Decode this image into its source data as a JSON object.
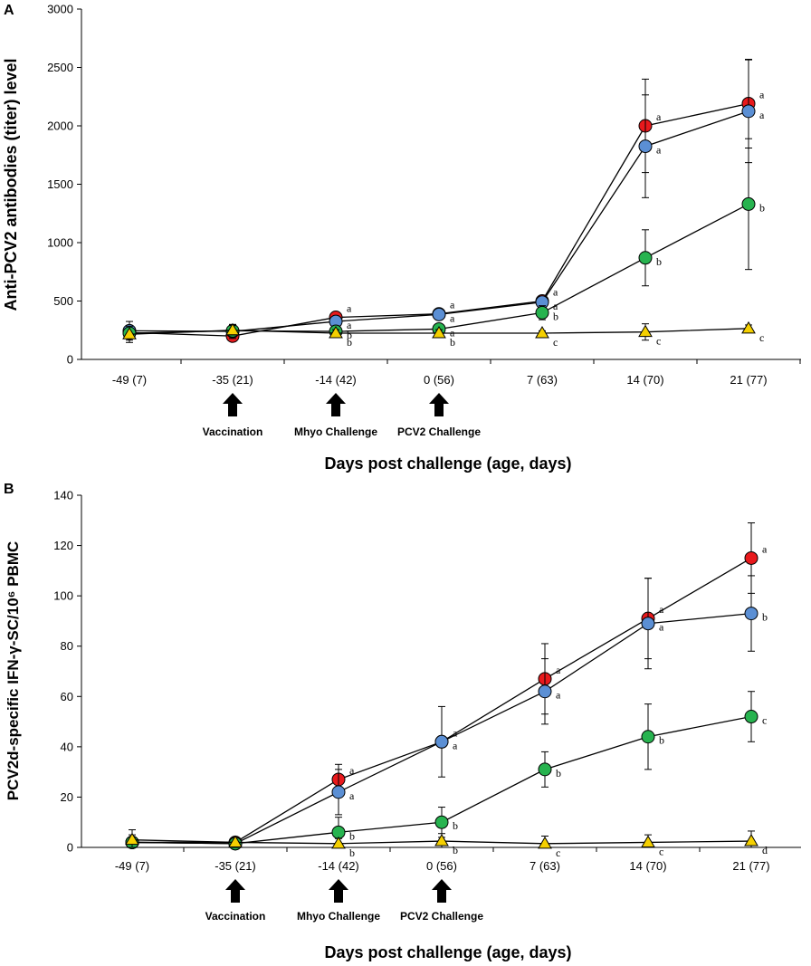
{
  "chart_data": [
    {
      "panel": "A",
      "type": "line",
      "xlabel": "Days post challenge (age, days)",
      "ylabel": "Anti-PCV2 antibodies (titer) level",
      "ylim": [
        0,
        3000
      ],
      "yticks": [
        0,
        500,
        1000,
        1500,
        2000,
        2500,
        3000
      ],
      "categories": [
        "-49 (7)",
        "-35 (21)",
        "-14 (42)",
        "0 (56)",
        "7 (63)",
        "14 (70)",
        "21 (77)"
      ],
      "events": [
        {
          "label": "Vaccination",
          "at": 1
        },
        {
          "label": "Mhyo Challenge",
          "at": 2
        },
        {
          "label": "PCV2 Challenge",
          "at": 3
        }
      ],
      "series": [
        {
          "name": "red",
          "color": "#e8191c",
          "marker": "circle",
          "values": [
            230,
            200,
            360,
            390,
            500,
            2000,
            2190
          ],
          "errors": [
            0,
            0,
            0,
            0,
            0,
            400,
            380
          ],
          "letters": [
            "",
            "",
            "a",
            "a",
            "a",
            "a",
            "a"
          ]
        },
        {
          "name": "blue",
          "color": "#5b8fd4",
          "marker": "circle",
          "values": [
            245,
            240,
            325,
            385,
            490,
            1825,
            2125
          ],
          "errors": [
            80,
            60,
            40,
            30,
            40,
            440,
            440
          ],
          "letters": [
            "",
            "",
            "a",
            "a",
            "a",
            "a",
            "a"
          ]
        },
        {
          "name": "green",
          "color": "#27b34f",
          "marker": "circle",
          "values": [
            225,
            245,
            240,
            260,
            400,
            870,
            1330
          ],
          "errors": [
            0,
            50,
            30,
            40,
            60,
            240,
            560
          ],
          "letters": [
            "",
            "",
            "b",
            "a",
            "b",
            "b",
            "b"
          ]
        },
        {
          "name": "yellow",
          "color": "#f5d000",
          "marker": "triangle",
          "values": [
            215,
            250,
            225,
            225,
            225,
            235,
            265
          ],
          "errors": [
            70,
            40,
            30,
            30,
            20,
            70,
            30
          ],
          "letters": [
            "",
            "",
            "b",
            "b",
            "c",
            "c",
            "c"
          ]
        }
      ]
    },
    {
      "panel": "B",
      "type": "line",
      "xlabel": "Days post challenge (age, days)",
      "ylabel": "PCV2d-specific IFN-γ-SC/10⁶ PBMC",
      "ylim": [
        0,
        140
      ],
      "yticks": [
        0,
        20,
        40,
        60,
        80,
        100,
        120,
        140
      ],
      "categories": [
        "-49 (7)",
        "-35 (21)",
        "-14 (42)",
        "0 (56)",
        "7 (63)",
        "14 (70)",
        "21 (77)"
      ],
      "events": [
        {
          "label": "Vaccination",
          "at": 1
        },
        {
          "label": "Mhyo Challenge",
          "at": 2
        },
        {
          "label": "PCV2 Challenge",
          "at": 3
        }
      ],
      "series": [
        {
          "name": "red",
          "color": "#e8191c",
          "marker": "circle",
          "values": [
            2,
            2,
            27,
            42,
            67,
            91,
            115
          ],
          "errors": [
            0,
            0,
            6,
            0,
            14,
            16,
            14
          ],
          "letters": [
            "",
            "",
            "a",
            "a",
            "a",
            "a",
            "a"
          ]
        },
        {
          "name": "blue",
          "color": "#5b8fd4",
          "marker": "circle",
          "values": [
            2,
            1.5,
            22,
            42,
            62,
            89,
            93
          ],
          "errors": [
            0,
            0,
            9,
            14,
            13,
            18,
            15
          ],
          "letters": [
            "",
            "",
            "a",
            "a",
            "a",
            "a",
            "b"
          ]
        },
        {
          "name": "green",
          "color": "#27b34f",
          "marker": "circle",
          "values": [
            2,
            1.5,
            6,
            10,
            31,
            44,
            52
          ],
          "errors": [
            3,
            2,
            6,
            6,
            7,
            13,
            10
          ],
          "letters": [
            "",
            "",
            "b",
            "b",
            "b",
            "b",
            "c"
          ]
        },
        {
          "name": "yellow",
          "color": "#f5d000",
          "marker": "triangle",
          "values": [
            3,
            2,
            1.5,
            2.5,
            1.5,
            2,
            2.5
          ],
          "errors": [
            4,
            2,
            2,
            3,
            3,
            3,
            4
          ],
          "letters": [
            "",
            "",
            "b",
            "b",
            "c",
            "c",
            "d"
          ]
        }
      ]
    }
  ]
}
